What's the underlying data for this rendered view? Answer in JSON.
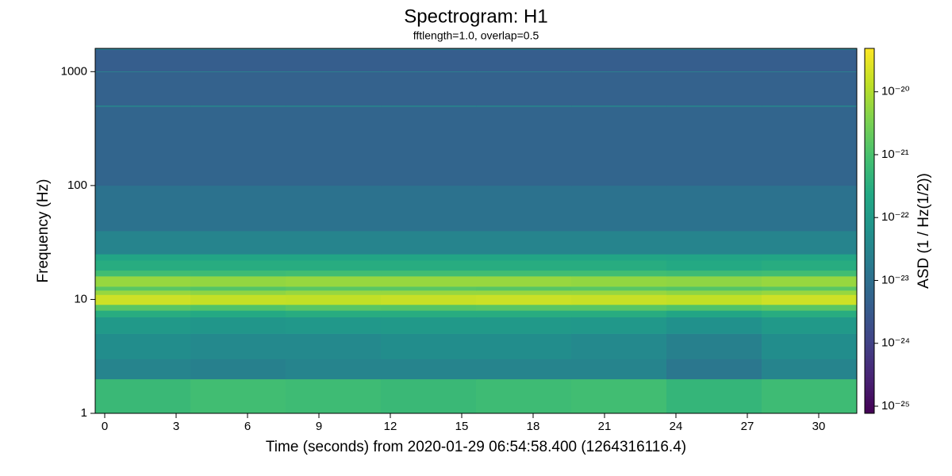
{
  "chart_data": {
    "type": "spectrogram",
    "title": "Spectrogram: H1",
    "subtitle": "fftlength=1.0, overlap=0.5",
    "xlabel": "Time (seconds) from 2020-01-29 06:54:58.400 (1264316116.4)",
    "ylabel": "Frequency (Hz)",
    "colorbar_label": "ASD (1 / Hz(1/2))",
    "colormap": "viridis",
    "yscale": "log",
    "colorbar_scale": "log",
    "xlim": [
      -0.4,
      31.6
    ],
    "ylim": [
      1,
      1600
    ],
    "xticks": [
      0,
      3,
      6,
      9,
      12,
      15,
      18,
      21,
      24,
      27,
      30
    ],
    "yticks": [
      1,
      10,
      100,
      1000
    ],
    "clim": [
      7.7e-26,
      4.9e-20
    ],
    "cticks": [
      {
        "value": 1e-25,
        "label": "10⁻²⁵"
      },
      {
        "value": 1e-24,
        "label": "10⁻²⁴"
      },
      {
        "value": 1e-23,
        "label": "10⁻²³"
      },
      {
        "value": 1e-22,
        "label": "10⁻²²"
      },
      {
        "value": 1e-21,
        "label": "10⁻²¹"
      },
      {
        "value": 1e-20,
        "label": "10⁻²⁰"
      }
    ],
    "x_edges": [
      -0.4,
      3.6,
      7.6,
      11.6,
      15.6,
      19.6,
      23.6,
      27.6,
      31.6
    ],
    "y_edges": [
      1,
      2,
      3,
      5,
      7,
      8,
      9,
      11,
      12,
      13,
      16,
      18,
      22,
      25,
      40,
      100,
      495,
      505,
      995,
      1005,
      1560,
      1600
    ],
    "values": [
      [
        6e-22,
        8e-22,
        7e-22,
        6e-22,
        7e-22,
        8e-22,
        5e-22,
        7e-22
      ],
      [
        3e-23,
        2.5e-23,
        3e-23,
        3e-23,
        3e-23,
        3e-23,
        1.5e-23,
        3e-23
      ],
      [
        5e-23,
        4e-23,
        4e-23,
        5e-23,
        5e-23,
        4e-23,
        2.5e-23,
        5e-23
      ],
      [
        1e-22,
        8e-23,
        9e-23,
        1e-22,
        1e-22,
        9e-23,
        6e-23,
        1e-22
      ],
      [
        3e-22,
        2.5e-22,
        3e-22,
        3e-22,
        3e-22,
        3e-22,
        2e-22,
        3e-22
      ],
      [
        1.5e-21,
        1.2e-21,
        1.5e-21,
        1.4e-21,
        1.5e-21,
        1.5e-21,
        1.2e-21,
        1.5e-21
      ],
      [
        1.8e-20,
        1.5e-20,
        1.4e-20,
        1.6e-20,
        1.7e-20,
        1.6e-20,
        1.4e-20,
        1.8e-20
      ],
      [
        6e-21,
        5e-21,
        6e-21,
        6e-21,
        6e-21,
        6e-21,
        5e-21,
        6e-21
      ],
      [
        1.5e-21,
        1.3e-21,
        1.5e-21,
        1.5e-21,
        1.4e-21,
        1.5e-21,
        1.3e-21,
        1.5e-21
      ],
      [
        6e-21,
        5.5e-21,
        6e-21,
        6e-21,
        6e-21,
        5.5e-21,
        5e-21,
        6e-21
      ],
      [
        8e-22,
        7e-22,
        8e-22,
        8e-22,
        8e-22,
        8e-22,
        7e-22,
        8e-22
      ],
      [
        3e-22,
        3e-22,
        3e-22,
        3e-22,
        3e-22,
        3e-22,
        2.5e-22,
        3e-22
      ],
      [
        2e-22,
        2e-22,
        2e-22,
        2e-22,
        2e-22,
        2e-22,
        1.8e-22,
        2e-22
      ],
      [
        3e-23,
        3e-23,
        3e-23,
        3e-23,
        3e-23,
        3e-23,
        3e-23,
        3e-23
      ],
      [
        1.2e-23,
        1.2e-23,
        1.2e-23,
        1.2e-23,
        1.2e-23,
        1.2e-23,
        1.2e-23,
        1.2e-23
      ],
      [
        6e-24,
        6e-24,
        6e-24,
        6e-24,
        6e-24,
        6e-24,
        6e-24,
        6e-24
      ],
      [
        5e-23,
        5e-23,
        5e-23,
        5e-23,
        5e-23,
        5e-23,
        5e-23,
        5e-23
      ],
      [
        5e-24,
        5e-24,
        5e-24,
        5e-24,
        5e-24,
        5e-24,
        5e-24,
        5e-24
      ],
      [
        5e-23,
        5e-23,
        5e-23,
        5e-23,
        5e-23,
        5e-23,
        5e-23,
        5e-23
      ],
      [
        4e-24,
        4e-24,
        4e-24,
        4e-24,
        4e-24,
        4e-24,
        4e-24,
        4e-24
      ],
      [
        2e-23,
        2e-23,
        2e-23,
        2e-23,
        2e-23,
        2e-23,
        2e-23,
        2e-23
      ]
    ]
  }
}
